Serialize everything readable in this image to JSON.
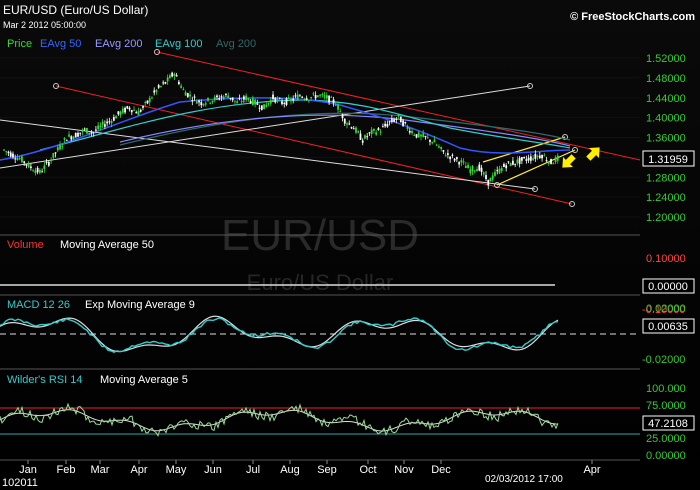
{
  "header": {
    "title": "EUR/USD (Euro/US Dollar)",
    "timestamp": "Mar 2 2012 05:00:00",
    "brand": "© FreeStockCharts.com"
  },
  "legend": [
    {
      "label": "Price",
      "color": "#33dd33"
    },
    {
      "label": "EAvg 50",
      "color": "#3355ff"
    },
    {
      "label": "EAvg 200",
      "color": "#8888ff"
    },
    {
      "label": "EAvg 100",
      "color": "#33cccc"
    },
    {
      "label": "Avg 200",
      "color": "#226666"
    }
  ],
  "watermark": {
    "symbol": "EUR/USD",
    "name": "Euro/US Dollar"
  },
  "price_panel": {
    "y_ticks": [
      "1.52000",
      "1.48000",
      "1.44000",
      "1.40000",
      "1.36000",
      "1.32000",
      "1.28000",
      "1.24000",
      "1.20000"
    ],
    "y_tick_values": [
      1.52,
      1.48,
      1.44,
      1.4,
      1.36,
      1.32,
      1.28,
      1.24,
      1.2
    ],
    "last_value": "1.31959"
  },
  "volume_panel": {
    "label": "Volume",
    "ma_label": "Moving Average 50",
    "y_ticks": [
      "0.10000",
      "-0.10000"
    ],
    "last_value": "0.00000"
  },
  "macd_panel": {
    "label": "MACD 12 26",
    "ma_label": "Exp Moving Average 9",
    "y_ticks": [
      "0.02000",
      "-0.02000"
    ],
    "last_value": "0.00635"
  },
  "rsi_panel": {
    "label": "Wilder's RSI 14",
    "ma_label": "Moving Average 5",
    "y_ticks": [
      "100.000",
      "75.0000",
      "25.0000",
      "0.00000"
    ],
    "last_value": "47.2108"
  },
  "x_axis": {
    "months": [
      "Jan",
      "Feb",
      "Mar",
      "Apr",
      "May",
      "Jun",
      "Jul",
      "Aug",
      "Sep",
      "Oct",
      "Nov",
      "Dec",
      "Apr"
    ],
    "year_label": "102011",
    "date_readout": "02/03/2012 17:00"
  },
  "chart_data": {
    "type": "line",
    "series": [
      {
        "name": "Price",
        "values": [
          1.335,
          1.325,
          1.315,
          1.3,
          1.29,
          1.31,
          1.335,
          1.36,
          1.365,
          1.375,
          1.37,
          1.385,
          1.395,
          1.41,
          1.42,
          1.41,
          1.43,
          1.455,
          1.47,
          1.49,
          1.455,
          1.44,
          1.43,
          1.435,
          1.44,
          1.445,
          1.43,
          1.44,
          1.43,
          1.42,
          1.44,
          1.43,
          1.435,
          1.445,
          1.44,
          1.445,
          1.44,
          1.43,
          1.395,
          1.38,
          1.355,
          1.37,
          1.375,
          1.39,
          1.4,
          1.38,
          1.365,
          1.36,
          1.35,
          1.33,
          1.32,
          1.31,
          1.295,
          1.3,
          1.27,
          1.29,
          1.305,
          1.31,
          1.315,
          1.32,
          1.325,
          1.31,
          1.32
        ]
      }
    ],
    "ylim": [
      1.2,
      1.52
    ],
    "annotations": [
      "EUR/USD",
      "Euro/US Dollar"
    ]
  }
}
